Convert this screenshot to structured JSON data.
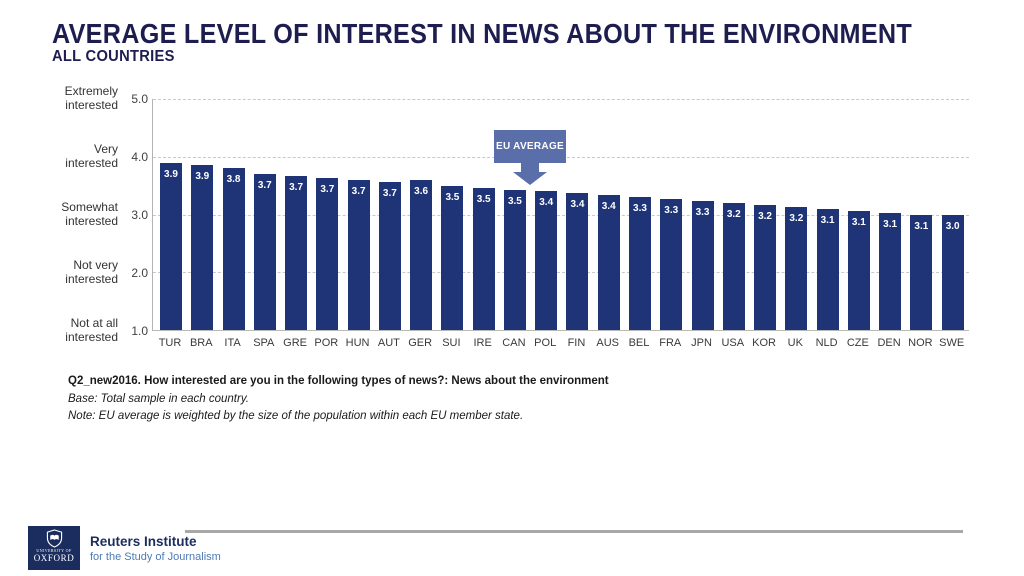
{
  "header": {
    "title": "AVERAGE LEVEL OF INTEREST IN NEWS ABOUT THE ENVIRONMENT",
    "subtitle": "ALL COUNTRIES"
  },
  "chart_data": {
    "type": "bar",
    "title": "AVERAGE LEVEL OF INTEREST IN NEWS ABOUT THE ENVIRONMENT",
    "subtitle": "ALL COUNTRIES",
    "categories": [
      "TUR",
      "BRA",
      "ITA",
      "SPA",
      "GRE",
      "POR",
      "HUN",
      "AUT",
      "GER",
      "SUI",
      "IRE",
      "CAN",
      "POL",
      "FIN",
      "AUS",
      "BEL",
      "FRA",
      "JPN",
      "USA",
      "KOR",
      "UK",
      "NLD",
      "CZE",
      "DEN",
      "NOR",
      "SWE"
    ],
    "values": [
      3.9,
      3.9,
      3.8,
      3.7,
      3.7,
      3.7,
      3.7,
      3.7,
      3.6,
      3.5,
      3.5,
      3.5,
      3.4,
      3.4,
      3.4,
      3.3,
      3.3,
      3.3,
      3.2,
      3.2,
      3.2,
      3.1,
      3.1,
      3.1,
      3.1,
      3.0
    ],
    "value_labels": [
      "3.9",
      "3.9",
      "3.8",
      "3.7",
      "3.7",
      "3.7",
      "3.7",
      "3.7",
      "3.6",
      "3.5",
      "3.5",
      "3.5",
      "3.4",
      "3.4",
      "3.4",
      "3.3",
      "3.3",
      "3.3",
      "3.2",
      "3.2",
      "3.2",
      "3.1",
      "3.1",
      "3.1",
      "3.1",
      "3.0"
    ],
    "ylim": [
      1.0,
      5.0
    ],
    "yticks": [
      "5.0",
      "4.0",
      "3.0",
      "2.0",
      "1.0"
    ],
    "y_scale_labels": [
      {
        "line1": "Extremely",
        "line2": "interested"
      },
      {
        "line1": "Very",
        "line2": "interested"
      },
      {
        "line1": "Somewhat",
        "line2": "interested"
      },
      {
        "line1": "Not very",
        "line2": "interested"
      },
      {
        "line1": "Not at all",
        "line2": "interested"
      }
    ],
    "grid": "horizontal dashed",
    "legend": "none",
    "annotation": {
      "label": "EU AVERAGE",
      "points_between": [
        "CAN",
        "POL"
      ]
    }
  },
  "footer": {
    "question": "Q2_new2016. How interested are you in the following types of news?: News about the environment",
    "base": "Base: Total sample in each country.",
    "note": "Note: EU average is weighted by the size of the population within each EU member state."
  },
  "branding": {
    "university_line1": "UNIVERSITY OF",
    "university_line2": "OXFORD",
    "institute_name": "Reuters Institute",
    "institute_sub": "for the Study of Journalism"
  },
  "colors": {
    "bar_navy": "#1f3477",
    "title_navy": "#1d1d4f",
    "callout_blue": "#5a6ea9",
    "logo_navy": "#1b2d5e",
    "inst_sub_blue": "#4d7bb5",
    "rule_gray": "#a8a8a8"
  }
}
